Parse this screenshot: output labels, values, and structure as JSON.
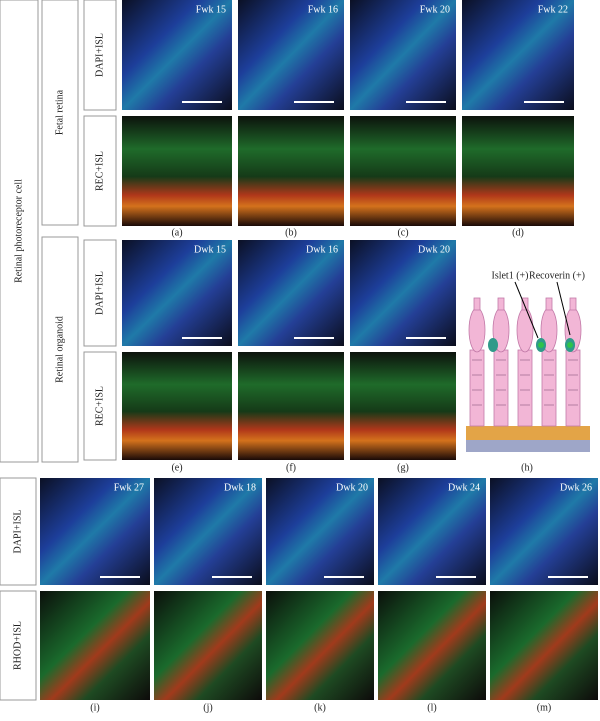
{
  "figure": {
    "side_label": "Retinal photoreceptor cell",
    "fetal": {
      "label": "Fetal retina",
      "rows": [
        "DAPI+ISL",
        "REC+ISL"
      ],
      "stages": [
        "Fwk 15",
        "Fwk 16",
        "Fwk 20",
        "Fwk 22"
      ],
      "captions": [
        "(a)",
        "(b)",
        "(c)",
        "(d)"
      ]
    },
    "organoid": {
      "label": "Retinal organoid",
      "rows": [
        "DAPI+ISL",
        "REC+ISL"
      ],
      "stages": [
        "Dwk 15",
        "Dwk 16",
        "Dwk 20"
      ],
      "captions": [
        "(e)",
        "(f)",
        "(g)",
        "(h)"
      ],
      "diagram_labels": [
        "Islet1 (+)",
        "Recoverin (+)"
      ]
    },
    "rod": {
      "rows": [
        "DAPI+ISL",
        "RHOD+ISL"
      ],
      "stages": [
        "Fwk 27",
        "Dwk 18",
        "Dwk 20",
        "Dwk 24",
        "Dwk 26"
      ],
      "captions": [
        "(i)",
        "(j)",
        "(k)",
        "(l)",
        "(m)"
      ]
    }
  }
}
